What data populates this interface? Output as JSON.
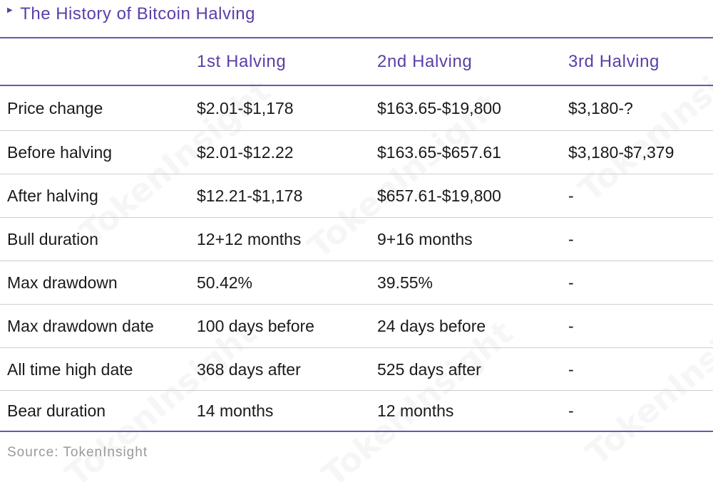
{
  "subtitle": "The History of Bitcoin Halving",
  "headers": [
    "",
    "1st Halving",
    "2nd Halving",
    "3rd Halving"
  ],
  "rows": [
    [
      "Price change",
      "$2.01-$1,178",
      "$163.65-$19,800",
      "$3,180-?"
    ],
    [
      "Before halving",
      "$2.01-$12.22",
      "$163.65-$657.61",
      "$3,180-$7,379"
    ],
    [
      "After halving",
      "$12.21-$1,178",
      "$657.61-$19,800",
      "-"
    ],
    [
      "Bull duration",
      "12+12 months",
      "9+16 months",
      "-"
    ],
    [
      "Max drawdown",
      "50.42%",
      "39.55%",
      "-"
    ],
    [
      "Max drawdown date",
      "100 days before",
      "24 days before",
      "-"
    ],
    [
      "All time high date",
      "368 days after",
      "525 days after",
      "-"
    ],
    [
      "Bear duration",
      "14 months",
      "12 months",
      "-"
    ]
  ],
  "source": "Source: TokenInsight",
  "watermark": "TokenInsight",
  "colors": {
    "accent": "#5a3fa8",
    "rule": "#6a55b3",
    "text": "#1a1a1a",
    "muted": "#9a9a9a"
  }
}
